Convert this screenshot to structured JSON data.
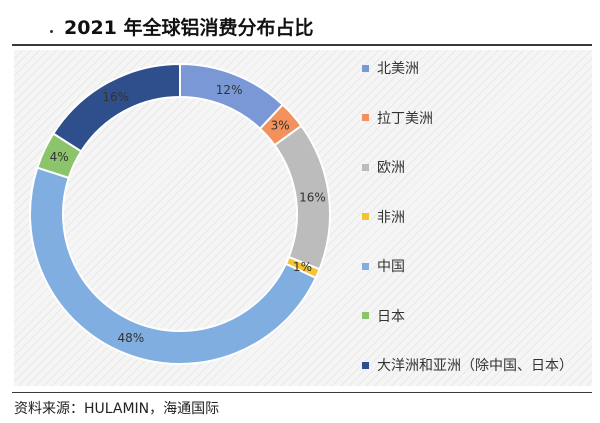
{
  "header": {
    "title": "2021 年全球铝消费分布占比"
  },
  "footer": {
    "source": "资料来源：HULAMIN，海通国际"
  },
  "chart_data": {
    "type": "pie",
    "title": "2021 年全球铝消费分布占比",
    "donut": true,
    "legend_position": "right",
    "categories": [
      "北美洲",
      "拉丁美洲",
      "欧洲",
      "非洲",
      "中国",
      "日本",
      "大洋洲和亚洲（除中国、日本）"
    ],
    "values": [
      12,
      3,
      16,
      1,
      48,
      4,
      16
    ],
    "labels": [
      "12%",
      "3%",
      "16%",
      "1%",
      "48%",
      "4%",
      "16%"
    ],
    "colors": [
      "#7b98d6",
      "#f2915b",
      "#bcbcbc",
      "#f6c32e",
      "#80aee0",
      "#8cc46c",
      "#2e4f8c"
    ]
  }
}
